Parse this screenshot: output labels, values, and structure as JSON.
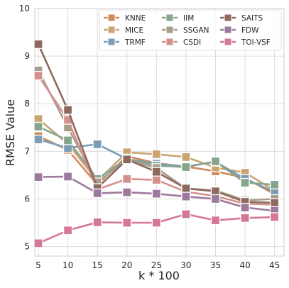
{
  "chart_data": {
    "type": "line",
    "title": "",
    "xlabel": "k * 100",
    "ylabel": "RMSE Value",
    "x": [
      5,
      10,
      15,
      20,
      25,
      30,
      35,
      40,
      45
    ],
    "x_tick_labels": [
      "5",
      "10",
      "15",
      "20",
      "25",
      "30",
      "35",
      "40",
      "45"
    ],
    "ylim": [
      4.8,
      10
    ],
    "y_ticks": [
      5,
      6,
      7,
      8,
      9,
      10
    ],
    "y_tick_labels": [
      "5",
      "6",
      "7",
      "8",
      "9",
      "10"
    ],
    "grid": true,
    "legend_position": "top-right",
    "marker": "square",
    "series": [
      {
        "name": "KNNE",
        "color": "#d0895a",
        "values": [
          7.32,
          7.03,
          6.3,
          6.9,
          6.75,
          6.68,
          6.58,
          6.44,
          6.1
        ]
      },
      {
        "name": "MICE",
        "color": "#caa572",
        "values": [
          7.68,
          7.16,
          6.38,
          6.98,
          6.94,
          6.88,
          6.66,
          6.55,
          6.18
        ]
      },
      {
        "name": "TRMF",
        "color": "#7b9cb5",
        "values": [
          7.25,
          7.07,
          7.15,
          6.84,
          6.74,
          6.68,
          6.78,
          6.42,
          6.15
        ]
      },
      {
        "name": "IIM",
        "color": "#86a58c",
        "values": [
          7.52,
          7.23,
          6.42,
          6.85,
          6.7,
          6.67,
          6.79,
          6.34,
          6.3
        ]
      },
      {
        "name": "SSGAN",
        "color": "#a89d8c",
        "values": [
          8.7,
          7.5,
          6.35,
          6.82,
          6.65,
          6.22,
          6.18,
          5.97,
          6.0
        ]
      },
      {
        "name": "CSDI",
        "color": "#d4908a",
        "values": [
          8.59,
          7.66,
          6.2,
          6.42,
          6.4,
          6.15,
          6.06,
          5.9,
          5.88
        ]
      },
      {
        "name": "SAITS",
        "color": "#8e6a5e",
        "values": [
          9.25,
          7.87,
          6.23,
          6.83,
          6.57,
          6.22,
          6.16,
          5.94,
          5.92
        ]
      },
      {
        "name": "FDW",
        "color": "#9d7a9d",
        "values": [
          6.46,
          6.47,
          6.12,
          6.14,
          6.11,
          6.05,
          6.0,
          5.82,
          5.75
        ]
      },
      {
        "name": "TOI-VSF",
        "color": "#d47894",
        "values": [
          5.07,
          5.34,
          5.51,
          5.5,
          5.5,
          5.68,
          5.55,
          5.6,
          5.62
        ]
      }
    ]
  }
}
